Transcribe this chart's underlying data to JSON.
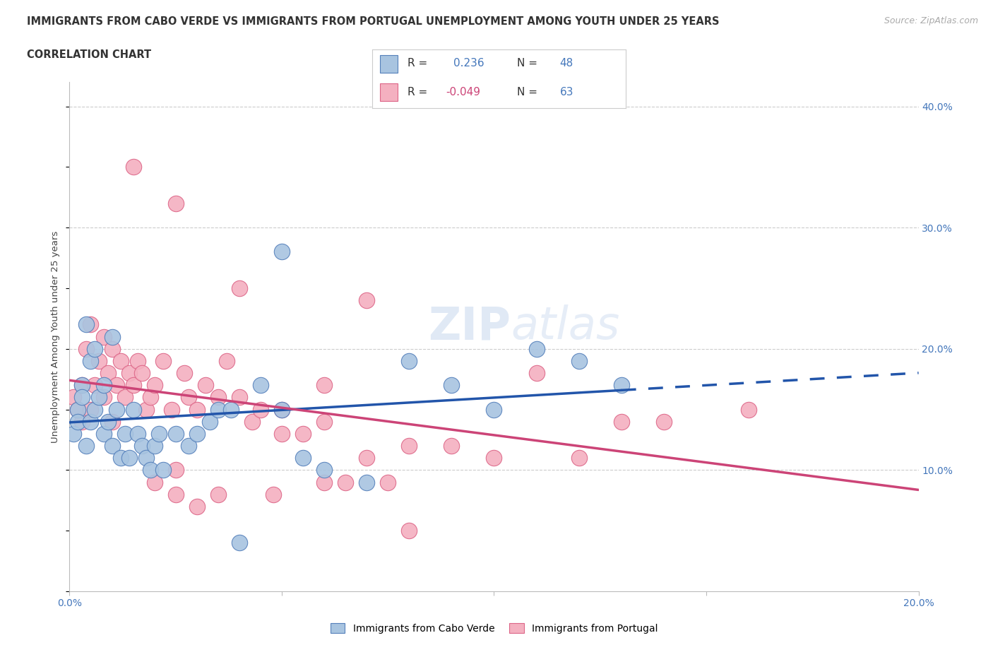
{
  "title_line1": "IMMIGRANTS FROM CABO VERDE VS IMMIGRANTS FROM PORTUGAL UNEMPLOYMENT AMONG YOUTH UNDER 25 YEARS",
  "title_line2": "CORRELATION CHART",
  "source": "Source: ZipAtlas.com",
  "watermark": "ZIPatlas",
  "ylabel": "Unemployment Among Youth under 25 years",
  "xlim": [
    0.0,
    0.2
  ],
  "ylim": [
    0.0,
    0.42
  ],
  "xticks": [
    0.0,
    0.05,
    0.1,
    0.15,
    0.2
  ],
  "yticks": [
    0.0,
    0.1,
    0.2,
    0.3,
    0.4
  ],
  "cabo_verde_color": "#a8c4e0",
  "portugal_color": "#f4b0c0",
  "cabo_verde_edge_color": "#5580bb",
  "portugal_edge_color": "#dd6688",
  "cabo_verde_line_color": "#2255aa",
  "portugal_line_color": "#cc4477",
  "cabo_verde_R": 0.236,
  "cabo_verde_N": 48,
  "portugal_R": -0.049,
  "portugal_N": 63,
  "legend_label_cabo": "Immigrants from Cabo Verde",
  "legend_label_portugal": "Immigrants from Portugal",
  "cabo_verde_x": [
    0.001,
    0.002,
    0.002,
    0.003,
    0.003,
    0.004,
    0.004,
    0.005,
    0.005,
    0.006,
    0.006,
    0.007,
    0.008,
    0.008,
    0.009,
    0.01,
    0.01,
    0.011,
    0.012,
    0.013,
    0.014,
    0.015,
    0.016,
    0.017,
    0.018,
    0.019,
    0.02,
    0.021,
    0.022,
    0.025,
    0.028,
    0.03,
    0.033,
    0.035,
    0.038,
    0.04,
    0.045,
    0.05,
    0.055,
    0.06,
    0.07,
    0.08,
    0.09,
    0.1,
    0.11,
    0.12,
    0.13,
    0.05
  ],
  "cabo_verde_y": [
    0.13,
    0.15,
    0.14,
    0.17,
    0.16,
    0.12,
    0.22,
    0.14,
    0.19,
    0.15,
    0.2,
    0.16,
    0.17,
    0.13,
    0.14,
    0.12,
    0.21,
    0.15,
    0.11,
    0.13,
    0.11,
    0.15,
    0.13,
    0.12,
    0.11,
    0.1,
    0.12,
    0.13,
    0.1,
    0.13,
    0.12,
    0.13,
    0.14,
    0.15,
    0.15,
    0.04,
    0.17,
    0.15,
    0.11,
    0.1,
    0.09,
    0.19,
    0.17,
    0.15,
    0.2,
    0.19,
    0.17,
    0.28
  ],
  "portugal_x": [
    0.001,
    0.002,
    0.003,
    0.003,
    0.004,
    0.005,
    0.005,
    0.006,
    0.007,
    0.008,
    0.008,
    0.009,
    0.01,
    0.01,
    0.011,
    0.012,
    0.013,
    0.014,
    0.015,
    0.015,
    0.016,
    0.017,
    0.018,
    0.019,
    0.02,
    0.022,
    0.024,
    0.025,
    0.027,
    0.028,
    0.03,
    0.032,
    0.035,
    0.037,
    0.04,
    0.043,
    0.045,
    0.048,
    0.05,
    0.055,
    0.06,
    0.065,
    0.07,
    0.075,
    0.08,
    0.09,
    0.1,
    0.11,
    0.12,
    0.14,
    0.16,
    0.02,
    0.025,
    0.03,
    0.025,
    0.035,
    0.04,
    0.05,
    0.06,
    0.07,
    0.08,
    0.06,
    0.13
  ],
  "portugal_y": [
    0.16,
    0.15,
    0.17,
    0.14,
    0.2,
    0.15,
    0.22,
    0.17,
    0.19,
    0.16,
    0.21,
    0.18,
    0.14,
    0.2,
    0.17,
    0.19,
    0.16,
    0.18,
    0.17,
    0.35,
    0.19,
    0.18,
    0.15,
    0.16,
    0.17,
    0.19,
    0.15,
    0.32,
    0.18,
    0.16,
    0.15,
    0.17,
    0.16,
    0.19,
    0.16,
    0.14,
    0.15,
    0.08,
    0.15,
    0.13,
    0.17,
    0.09,
    0.11,
    0.09,
    0.12,
    0.12,
    0.11,
    0.18,
    0.11,
    0.14,
    0.15,
    0.09,
    0.08,
    0.07,
    0.1,
    0.08,
    0.25,
    0.13,
    0.09,
    0.24,
    0.05,
    0.14,
    0.14
  ],
  "background_color": "#ffffff",
  "grid_color": "#cccccc",
  "title_color": "#333333",
  "value_color": "#4477bb",
  "tick_label_color": "#4477bb"
}
